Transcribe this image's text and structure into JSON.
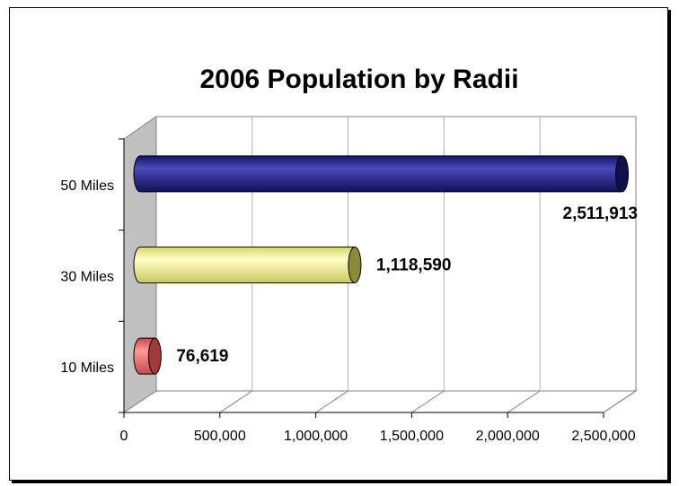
{
  "chart_data": {
    "type": "bar",
    "orientation": "horizontal",
    "title": "2006 Population by Radii",
    "xlabel": "",
    "ylabel": "",
    "categories": [
      "10 Miles",
      "30 Miles",
      "50 Miles"
    ],
    "values": [
      76619,
      1118590,
      2511913
    ],
    "data_labels": [
      "76,619",
      "1,118,590",
      "2,511,913"
    ],
    "xlim": [
      0,
      2500000
    ],
    "x_ticks": [
      0,
      500000,
      1000000,
      1500000,
      2000000,
      2500000
    ],
    "x_tick_labels": [
      "0",
      "500,000",
      "1,000,000",
      "1,500,000",
      "2,000,000",
      "2,500,000"
    ],
    "grid": "vertical",
    "legend": "none",
    "colors": {
      "10 Miles": "#f06f6f",
      "30 Miles": "#f5f590",
      "50 Miles": "#2a2a94"
    }
  }
}
